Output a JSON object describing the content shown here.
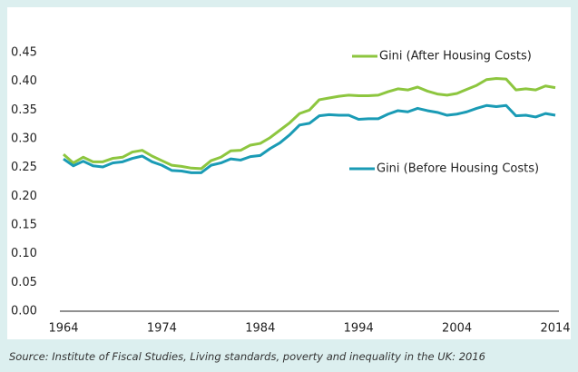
{
  "chart_data": {
    "type": "line",
    "x": [
      1964,
      1965,
      1966,
      1967,
      1968,
      1969,
      1970,
      1971,
      1972,
      1973,
      1974,
      1975,
      1976,
      1977,
      1978,
      1979,
      1980,
      1981,
      1982,
      1983,
      1984,
      1985,
      1986,
      1987,
      1988,
      1989,
      1990,
      1991,
      1992,
      1993,
      1994,
      1995,
      1996,
      1997,
      1998,
      1999,
      2000,
      2001,
      2002,
      2003,
      2004,
      2005,
      2006,
      2007,
      2008,
      2009,
      2010,
      2011,
      2012,
      2013,
      2014
    ],
    "series": [
      {
        "name": "Gini (After Housing Costs)",
        "color": "#8dc63f",
        "values": [
          0.273,
          0.258,
          0.268,
          0.26,
          0.26,
          0.266,
          0.268,
          0.277,
          0.28,
          0.27,
          0.262,
          0.254,
          0.252,
          0.249,
          0.248,
          0.262,
          0.268,
          0.279,
          0.28,
          0.289,
          0.292,
          0.302,
          0.315,
          0.328,
          0.344,
          0.35,
          0.368,
          0.371,
          0.374,
          0.376,
          0.375,
          0.375,
          0.376,
          0.382,
          0.387,
          0.385,
          0.39,
          0.383,
          0.378,
          0.376,
          0.379,
          0.386,
          0.393,
          0.403,
          0.405,
          0.404,
          0.385,
          0.387,
          0.385,
          0.392,
          0.389
        ]
      },
      {
        "name": "Gini (Before Housing Costs)",
        "color": "#1a9bb5",
        "values": [
          0.265,
          0.253,
          0.261,
          0.253,
          0.251,
          0.258,
          0.26,
          0.266,
          0.27,
          0.26,
          0.254,
          0.245,
          0.244,
          0.241,
          0.241,
          0.254,
          0.258,
          0.265,
          0.263,
          0.269,
          0.271,
          0.283,
          0.293,
          0.307,
          0.324,
          0.327,
          0.34,
          0.342,
          0.341,
          0.341,
          0.334,
          0.335,
          0.335,
          0.343,
          0.349,
          0.347,
          0.353,
          0.349,
          0.346,
          0.341,
          0.343,
          0.347,
          0.353,
          0.358,
          0.356,
          0.358,
          0.34,
          0.341,
          0.338,
          0.344,
          0.341
        ]
      }
    ],
    "xlim": [
      1964,
      2014
    ],
    "xticks": [
      1964,
      1974,
      1984,
      1994,
      2004,
      2014
    ],
    "ylim": [
      0,
      0.45
    ],
    "yticks": [
      {
        "value": 0,
        "label": "0.00"
      },
      0.05,
      {
        "value": 0.1,
        "label": "0.10"
      },
      0.15,
      {
        "value": 0.2,
        "label": "0.20"
      },
      0.25,
      {
        "value": 0.3,
        "label": "0.30"
      },
      0.35,
      {
        "value": 0.4,
        "label": "0.40"
      },
      0.45
    ],
    "grid": false,
    "source": "Source: Institute of Fiscal Studies, Living standards, poverty and inequality in the UK: 2016"
  }
}
